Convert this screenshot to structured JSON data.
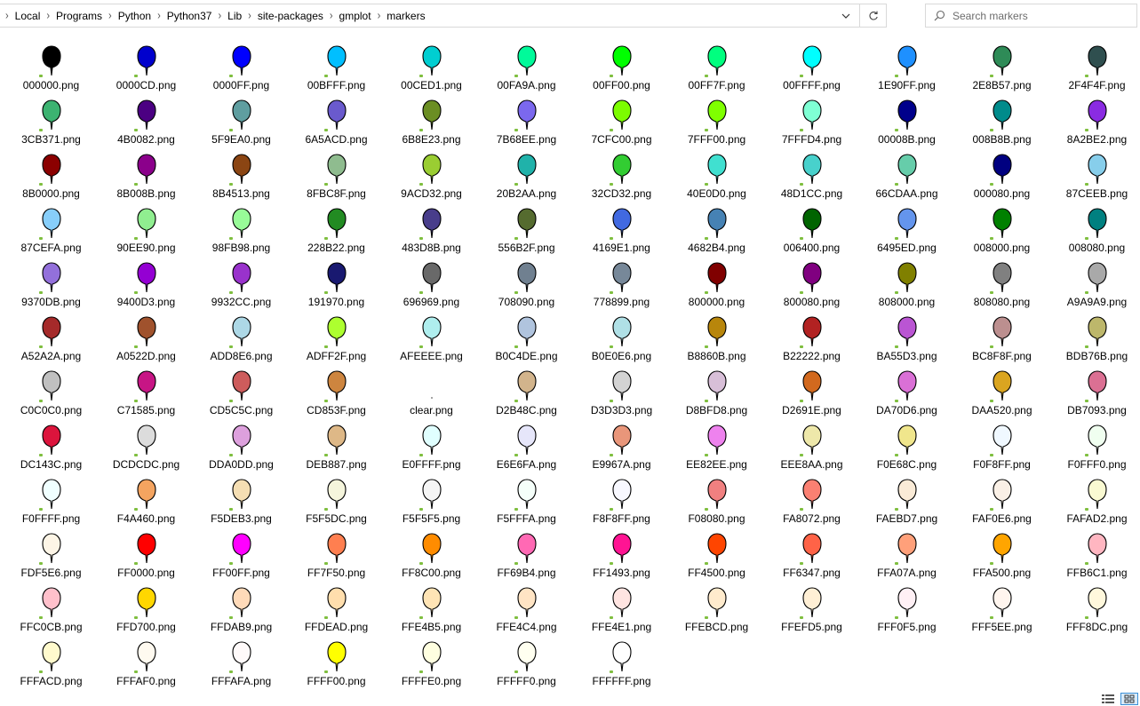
{
  "breadcrumb": [
    "Local",
    "Programs",
    "Python",
    "Python37",
    "Lib",
    "site-packages",
    "gmplot",
    "markers"
  ],
  "icons": {
    "dropdown": "chevron-down-icon",
    "refresh": "refresh-icon",
    "search": "search-icon",
    "details_view": "details-view-icon",
    "large_icons_view": "large-icons-view-icon"
  },
  "search": {
    "placeholder": "Search markers"
  },
  "files": [
    {
      "name": "000000.png",
      "color": "#000000"
    },
    {
      "name": "0000CD.png",
      "color": "#0000CD"
    },
    {
      "name": "0000FF.png",
      "color": "#0000FF"
    },
    {
      "name": "00BFFF.png",
      "color": "#00BFFF"
    },
    {
      "name": "00CED1.png",
      "color": "#00CED1"
    },
    {
      "name": "00FA9A.png",
      "color": "#00FA9A"
    },
    {
      "name": "00FF00.png",
      "color": "#00FF00"
    },
    {
      "name": "00FF7F.png",
      "color": "#00FF7F"
    },
    {
      "name": "00FFFF.png",
      "color": "#00FFFF"
    },
    {
      "name": "1E90FF.png",
      "color": "#1E90FF"
    },
    {
      "name": "2E8B57.png",
      "color": "#2E8B57"
    },
    {
      "name": "2F4F4F.png",
      "color": "#2F4F4F"
    },
    {
      "name": "3CB371.png",
      "color": "#3CB371"
    },
    {
      "name": "4B0082.png",
      "color": "#4B0082"
    },
    {
      "name": "5F9EA0.png",
      "color": "#5F9EA0"
    },
    {
      "name": "6A5ACD.png",
      "color": "#6A5ACD"
    },
    {
      "name": "6B8E23.png",
      "color": "#6B8E23"
    },
    {
      "name": "7B68EE.png",
      "color": "#7B68EE"
    },
    {
      "name": "7CFC00.png",
      "color": "#7CFC00"
    },
    {
      "name": "7FFF00.png",
      "color": "#7FFF00"
    },
    {
      "name": "7FFFD4.png",
      "color": "#7FFFD4"
    },
    {
      "name": "00008B.png",
      "color": "#00008B"
    },
    {
      "name": "008B8B.png",
      "color": "#008B8B"
    },
    {
      "name": "8A2BE2.png",
      "color": "#8A2BE2"
    },
    {
      "name": "8B0000.png",
      "color": "#8B0000"
    },
    {
      "name": "8B008B.png",
      "color": "#8B008B"
    },
    {
      "name": "8B4513.png",
      "color": "#8B4513"
    },
    {
      "name": "8FBC8F.png",
      "color": "#8FBC8F"
    },
    {
      "name": "9ACD32.png",
      "color": "#9ACD32"
    },
    {
      "name": "20B2AA.png",
      "color": "#20B2AA"
    },
    {
      "name": "32CD32.png",
      "color": "#32CD32"
    },
    {
      "name": "40E0D0.png",
      "color": "#40E0D0"
    },
    {
      "name": "48D1CC.png",
      "color": "#48D1CC"
    },
    {
      "name": "66CDAA.png",
      "color": "#66CDAA"
    },
    {
      "name": "000080.png",
      "color": "#000080"
    },
    {
      "name": "87CEEB.png",
      "color": "#87CEEB"
    },
    {
      "name": "87CEFA.png",
      "color": "#87CEFA"
    },
    {
      "name": "90EE90.png",
      "color": "#90EE90"
    },
    {
      "name": "98FB98.png",
      "color": "#98FB98"
    },
    {
      "name": "228B22.png",
      "color": "#228B22"
    },
    {
      "name": "483D8B.png",
      "color": "#483D8B"
    },
    {
      "name": "556B2F.png",
      "color": "#556B2F"
    },
    {
      "name": "4169E1.png",
      "color": "#4169E1"
    },
    {
      "name": "4682B4.png",
      "color": "#4682B4"
    },
    {
      "name": "006400.png",
      "color": "#006400"
    },
    {
      "name": "6495ED.png",
      "color": "#6495ED"
    },
    {
      "name": "008000.png",
      "color": "#008000"
    },
    {
      "name": "008080.png",
      "color": "#008080"
    },
    {
      "name": "9370DB.png",
      "color": "#9370DB"
    },
    {
      "name": "9400D3.png",
      "color": "#9400D3"
    },
    {
      "name": "9932CC.png",
      "color": "#9932CC"
    },
    {
      "name": "191970.png",
      "color": "#191970"
    },
    {
      "name": "696969.png",
      "color": "#696969"
    },
    {
      "name": "708090.png",
      "color": "#708090"
    },
    {
      "name": "778899.png",
      "color": "#778899"
    },
    {
      "name": "800000.png",
      "color": "#800000"
    },
    {
      "name": "800080.png",
      "color": "#800080"
    },
    {
      "name": "808000.png",
      "color": "#808000"
    },
    {
      "name": "808080.png",
      "color": "#808080"
    },
    {
      "name": "A9A9A9.png",
      "color": "#A9A9A9"
    },
    {
      "name": "A52A2A.png",
      "color": "#A52A2A"
    },
    {
      "name": "A0522D.png",
      "color": "#A0522D"
    },
    {
      "name": "ADD8E6.png",
      "color": "#ADD8E6"
    },
    {
      "name": "ADFF2F.png",
      "color": "#ADFF2F"
    },
    {
      "name": "AFEEEE.png",
      "color": "#AFEEEE"
    },
    {
      "name": "B0C4DE.png",
      "color": "#B0C4DE"
    },
    {
      "name": "B0E0E6.png",
      "color": "#B0E0E6"
    },
    {
      "name": "B8860B.png",
      "color": "#B8860B"
    },
    {
      "name": "B22222.png",
      "color": "#B22222"
    },
    {
      "name": "BA55D3.png",
      "color": "#BA55D3"
    },
    {
      "name": "BC8F8F.png",
      "color": "#BC8F8F"
    },
    {
      "name": "BDB76B.png",
      "color": "#BDB76B"
    },
    {
      "name": "C0C0C0.png",
      "color": "#C0C0C0"
    },
    {
      "name": "C71585.png",
      "color": "#C71585"
    },
    {
      "name": "CD5C5C.png",
      "color": "#CD5C5C"
    },
    {
      "name": "CD853F.png",
      "color": "#CD853F"
    },
    {
      "name": "clear.png",
      "color": "none"
    },
    {
      "name": "D2B48C.png",
      "color": "#D2B48C"
    },
    {
      "name": "D3D3D3.png",
      "color": "#D3D3D3"
    },
    {
      "name": "D8BFD8.png",
      "color": "#D8BFD8"
    },
    {
      "name": "D2691E.png",
      "color": "#D2691E"
    },
    {
      "name": "DA70D6.png",
      "color": "#DA70D6"
    },
    {
      "name": "DAA520.png",
      "color": "#DAA520"
    },
    {
      "name": "DB7093.png",
      "color": "#DB7093"
    },
    {
      "name": "DC143C.png",
      "color": "#DC143C"
    },
    {
      "name": "DCDCDC.png",
      "color": "#DCDCDC"
    },
    {
      "name": "DDA0DD.png",
      "color": "#DDA0DD"
    },
    {
      "name": "DEB887.png",
      "color": "#DEB887"
    },
    {
      "name": "E0FFFF.png",
      "color": "#E0FFFF"
    },
    {
      "name": "E6E6FA.png",
      "color": "#E6E6FA"
    },
    {
      "name": "E9967A.png",
      "color": "#E9967A"
    },
    {
      "name": "EE82EE.png",
      "color": "#EE82EE"
    },
    {
      "name": "EEE8AA.png",
      "color": "#EEE8AA"
    },
    {
      "name": "F0E68C.png",
      "color": "#F0E68C"
    },
    {
      "name": "F0F8FF.png",
      "color": "#F0F8FF"
    },
    {
      "name": "F0FFF0.png",
      "color": "#F0FFF0"
    },
    {
      "name": "F0FFFF.png",
      "color": "#F0FFFF"
    },
    {
      "name": "F4A460.png",
      "color": "#F4A460"
    },
    {
      "name": "F5DEB3.png",
      "color": "#F5DEB3"
    },
    {
      "name": "F5F5DC.png",
      "color": "#F5F5DC"
    },
    {
      "name": "F5F5F5.png",
      "color": "#F5F5F5"
    },
    {
      "name": "F5FFFA.png",
      "color": "#F5FFFA"
    },
    {
      "name": "F8F8FF.png",
      "color": "#F8F8FF"
    },
    {
      "name": "F08080.png",
      "color": "#F08080"
    },
    {
      "name": "FA8072.png",
      "color": "#FA8072"
    },
    {
      "name": "FAEBD7.png",
      "color": "#FAEBD7"
    },
    {
      "name": "FAF0E6.png",
      "color": "#FAF0E6"
    },
    {
      "name": "FAFAD2.png",
      "color": "#FAFAD2"
    },
    {
      "name": "FDF5E6.png",
      "color": "#FDF5E6"
    },
    {
      "name": "FF0000.png",
      "color": "#FF0000"
    },
    {
      "name": "FF00FF.png",
      "color": "#FF00FF"
    },
    {
      "name": "FF7F50.png",
      "color": "#FF7F50"
    },
    {
      "name": "FF8C00.png",
      "color": "#FF8C00"
    },
    {
      "name": "FF69B4.png",
      "color": "#FF69B4"
    },
    {
      "name": "FF1493.png",
      "color": "#FF1493"
    },
    {
      "name": "FF4500.png",
      "color": "#FF4500"
    },
    {
      "name": "FF6347.png",
      "color": "#FF6347"
    },
    {
      "name": "FFA07A.png",
      "color": "#FFA07A"
    },
    {
      "name": "FFA500.png",
      "color": "#FFA500"
    },
    {
      "name": "FFB6C1.png",
      "color": "#FFB6C1"
    },
    {
      "name": "FFC0CB.png",
      "color": "#FFC0CB"
    },
    {
      "name": "FFD700.png",
      "color": "#FFD700"
    },
    {
      "name": "FFDAB9.png",
      "color": "#FFDAB9"
    },
    {
      "name": "FFDEAD.png",
      "color": "#FFDEAD"
    },
    {
      "name": "FFE4B5.png",
      "color": "#FFE4B5"
    },
    {
      "name": "FFE4C4.png",
      "color": "#FFE4C4"
    },
    {
      "name": "FFE4E1.png",
      "color": "#FFE4E1"
    },
    {
      "name": "FFEBCD.png",
      "color": "#FFEBCD"
    },
    {
      "name": "FFEFD5.png",
      "color": "#FFEFD5"
    },
    {
      "name": "FFF0F5.png",
      "color": "#FFF0F5"
    },
    {
      "name": "FFF5EE.png",
      "color": "#FFF5EE"
    },
    {
      "name": "FFF8DC.png",
      "color": "#FFF8DC"
    },
    {
      "name": "FFFACD.png",
      "color": "#FFFACD"
    },
    {
      "name": "FFFAF0.png",
      "color": "#FFFAF0"
    },
    {
      "name": "FFFAFA.png",
      "color": "#FFFAFA"
    },
    {
      "name": "FFFF00.png",
      "color": "#FFFF00"
    },
    {
      "name": "FFFFE0.png",
      "color": "#FFFFE0"
    },
    {
      "name": "FFFFF0.png",
      "color": "#FFFFF0"
    },
    {
      "name": "FFFFFF.png",
      "color": "#FFFFFF"
    }
  ]
}
